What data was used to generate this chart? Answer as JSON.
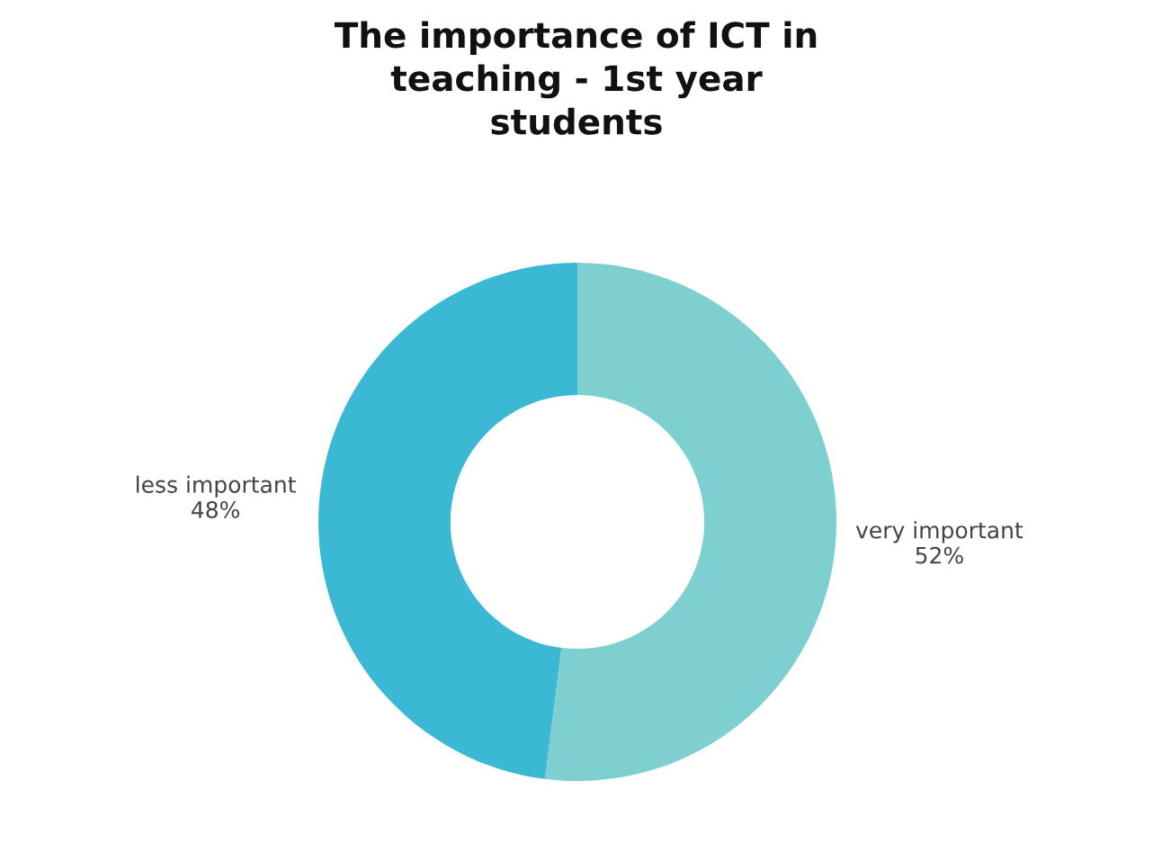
{
  "chart_data": {
    "type": "donut",
    "title": "The importance of ICT in\nteaching - 1st year\nstudents",
    "categories": [
      "very important",
      "less important"
    ],
    "values": [
      52,
      48
    ],
    "value_labels": [
      "52%",
      "48%"
    ],
    "colors": [
      "#7ecfcf",
      "#3bb9d4"
    ],
    "legend": false
  }
}
